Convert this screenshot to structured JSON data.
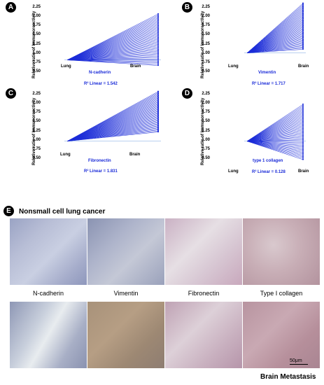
{
  "y_axis_label": "Relative ratio of Immunoreactivity",
  "y_ticks": [
    "2.25",
    "2.00",
    "1.75",
    "1.50",
    "1.25",
    "1.00",
    "0.75",
    "0.50"
  ],
  "x_categories": [
    "Lung",
    "Brain"
  ],
  "panels": [
    {
      "letter": "A",
      "marker": "N-cadherin",
      "r2": "R² Linear = 1.542"
    },
    {
      "letter": "B",
      "marker": "Vimentin",
      "r2": "R² Linear = 1.717"
    },
    {
      "letter": "C",
      "marker": "Fibronectin",
      "r2": "R² Linear = 1.831"
    },
    {
      "letter": "D",
      "marker": "type 1 collagen",
      "r2": "R² Linear = 0.128"
    }
  ],
  "chart_data": [
    {
      "type": "line",
      "title": "",
      "marker": "N-cadherin",
      "categories": [
        "Lung",
        "Brain"
      ],
      "ylabel": "Relative ratio of Immunoreactivity",
      "ylim": [
        0.5,
        2.25
      ],
      "start_value": 1.0,
      "end_range": [
        0.85,
        2.25
      ],
      "annotation": "R² Linear = 1.542"
    },
    {
      "type": "line",
      "title": "",
      "marker": "Vimentin",
      "categories": [
        "Lung",
        "Brain"
      ],
      "ylabel": "Relative ratio of Immunoreactivity",
      "ylim": [
        0.5,
        2.25
      ],
      "start_value": 1.0,
      "end_range": [
        1.1,
        2.35
      ],
      "annotation": "R² Linear = 1.717"
    },
    {
      "type": "line",
      "title": "",
      "marker": "Fibronectin",
      "categories": [
        "Lung",
        "Brain"
      ],
      "ylabel": "Relative ratio of Immunoreactivity",
      "ylim": [
        0.5,
        2.25
      ],
      "start_value": 1.0,
      "end_range": [
        1.25,
        2.35
      ],
      "annotation": "R² Linear = 1.831"
    },
    {
      "type": "line",
      "title": "",
      "marker": "type 1 collagen",
      "categories": [
        "Lung",
        "Brain"
      ],
      "ylabel": "Relative ratio of Immunoreactivity",
      "ylim": [
        0.5,
        2.25
      ],
      "start_value": 1.0,
      "end_range": [
        0.5,
        2.0
      ],
      "annotation": "R² Linear = 0.128"
    }
  ],
  "section_e": {
    "letter": "E",
    "title": "Nonsmall cell lung cancer",
    "labels": [
      "N-cadherin",
      "Vimentin",
      "Fibronectin",
      "Type I collagen"
    ],
    "bottom_title": "Brain Metastasis",
    "scale": "50μm"
  },
  "colors": {
    "line": "#1a2bd8",
    "baseline": "#8fb4e8"
  }
}
